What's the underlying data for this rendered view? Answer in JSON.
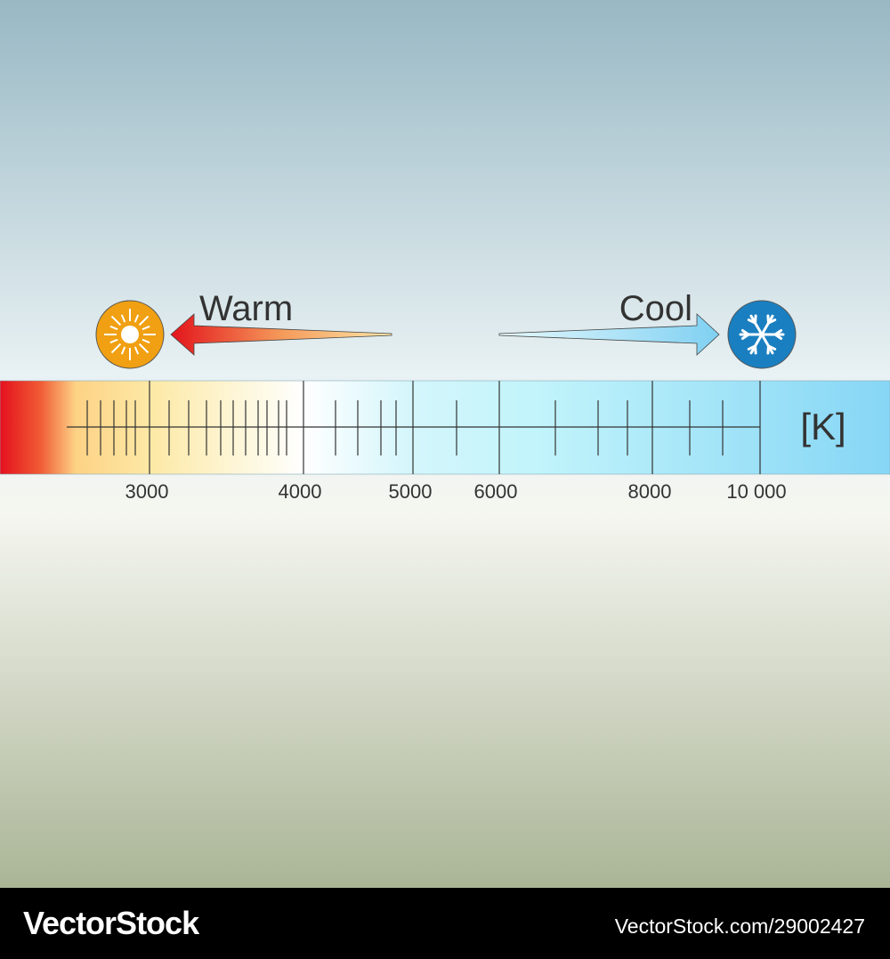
{
  "arrows": {
    "warm": "Warm",
    "cool": "Cool"
  },
  "scale": {
    "unit": "[K]",
    "labels": [
      "3000",
      "4000",
      "5000",
      "6000",
      "8000",
      "10 000"
    ]
  },
  "footer": {
    "brand": "VectorStock",
    "id": "VectorStock.com/29002427"
  }
}
